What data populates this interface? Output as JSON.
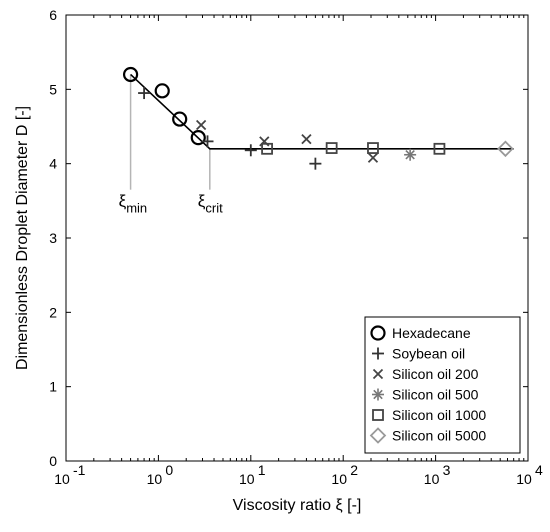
{
  "chart_data": {
    "type": "scatter",
    "xscale": "log",
    "xlim": [
      0.1,
      10000
    ],
    "ylim": [
      0,
      6
    ],
    "xlabel": "Viscosity ratio ξ [-]",
    "ylabel": "Dimensionless Droplet Diameter D [-]",
    "x_ticks": [
      {
        "value": 0.1,
        "base": "10",
        "exp": "-1"
      },
      {
        "value": 1,
        "base": "10",
        "exp": "0"
      },
      {
        "value": 10,
        "base": "10",
        "exp": "1"
      },
      {
        "value": 100,
        "base": "10",
        "exp": "2"
      },
      {
        "value": 1000,
        "base": "10",
        "exp": "3"
      },
      {
        "value": 10000,
        "base": "10",
        "exp": "4"
      }
    ],
    "y_ticks": [
      0,
      1,
      2,
      3,
      4,
      5,
      6
    ],
    "grid": false,
    "legend_position": "bottom-right",
    "series": [
      {
        "name": "Hexadecane",
        "marker": "circle",
        "color": "#000000",
        "points": [
          [
            0.5,
            5.2
          ],
          [
            1.1,
            4.98
          ],
          [
            1.7,
            4.6
          ],
          [
            2.7,
            4.35
          ]
        ]
      },
      {
        "name": "Soybean oil",
        "marker": "plus",
        "color": "#333333",
        "points": [
          [
            0.7,
            4.95
          ],
          [
            3.4,
            4.3
          ],
          [
            10,
            4.18
          ],
          [
            50,
            4.0
          ]
        ]
      },
      {
        "name": "Silicon oil 200",
        "marker": "x",
        "color": "#444444",
        "points": [
          [
            2.9,
            4.52
          ],
          [
            14,
            4.3
          ],
          [
            40,
            4.33
          ],
          [
            210,
            4.08
          ]
        ]
      },
      {
        "name": "Silicon oil 500",
        "marker": "asterisk",
        "color": "#777777",
        "points": [
          [
            530,
            4.12
          ]
        ]
      },
      {
        "name": "Silicon oil 1000",
        "marker": "square",
        "color": "#444444",
        "points": [
          [
            15,
            4.2
          ],
          [
            75,
            4.21
          ],
          [
            210,
            4.21
          ],
          [
            1100,
            4.2
          ]
        ]
      },
      {
        "name": "Silicon oil 5000",
        "marker": "diamond",
        "color": "#999999",
        "points": [
          [
            5700,
            4.2
          ]
        ]
      }
    ],
    "fit_line": {
      "points": [
        [
          0.5,
          5.2
        ],
        [
          3.6,
          4.2
        ],
        [
          7000,
          4.2
        ]
      ]
    },
    "annotations": [
      {
        "label": "ξ",
        "sub": "min",
        "x": 0.5,
        "y_from": 5.2,
        "y_to": 3.65
      },
      {
        "label": "ξ",
        "sub": "crit",
        "x": 3.6,
        "y_from": 4.2,
        "y_to": 3.65
      }
    ]
  }
}
